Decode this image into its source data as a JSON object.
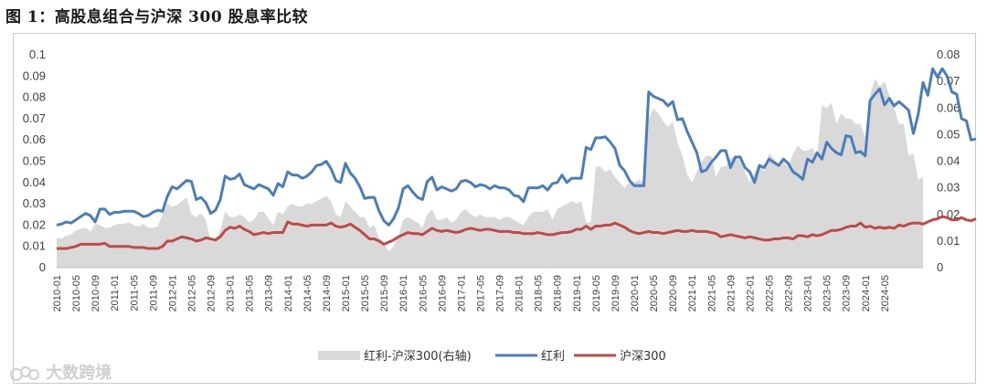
{
  "title": "图 1：高股息组合与沪深 300 股息率比较",
  "watermark": "大数跨境",
  "chart_data": {
    "type": "line",
    "left_axis": {
      "ticks": [
        "0",
        "0.01",
        "0.02",
        "0.03",
        "0.04",
        "0.05",
        "0.06",
        "0.07",
        "0.08",
        "0.09",
        "0.1"
      ],
      "ylim": [
        0,
        0.1
      ]
    },
    "right_axis": {
      "ticks": [
        "0",
        "0.01",
        "0.02",
        "0.03",
        "0.04",
        "0.05",
        "0.06",
        "0.07",
        "0.08"
      ],
      "ylim": [
        0,
        0.08
      ]
    },
    "x_tick_labels": [
      "2010-01",
      "2010-05",
      "2010-09",
      "2011-01",
      "2011-05",
      "2011-09",
      "2012-01",
      "2012-05",
      "2012-09",
      "2013-01",
      "2013-05",
      "2013-09",
      "2014-01",
      "2014-05",
      "2014-09",
      "2015-01",
      "2015-05",
      "2015-09",
      "2016-01",
      "2016-05",
      "2016-09",
      "2017-01",
      "2017-05",
      "2017-09",
      "2018-01",
      "2018-05",
      "2018-09",
      "2019-01",
      "2019-05",
      "2019-09",
      "2020-01",
      "2020-05",
      "2020-09",
      "2021-01",
      "2021-05",
      "2021-09",
      "2022-01",
      "2022-05",
      "2022-09",
      "2023-01",
      "2023-05",
      "2023-09",
      "2024-01",
      "2024-05"
    ],
    "legend_position": "bottom",
    "colors": {
      "area": "#d9d9d9",
      "dividend": "#4a7ebb",
      "hs300": "#be4b48"
    },
    "series": [
      {
        "name": "红利-沪深300(右轴)",
        "type": "area",
        "axis": "right",
        "values": [
          0.011,
          0.011,
          0.012,
          0.0125,
          0.014,
          0.0145,
          0.015,
          0.0135,
          0.0165,
          0.016,
          0.015,
          0.015,
          0.016,
          0.0165,
          0.0165,
          0.017,
          0.016,
          0.0155,
          0.0165,
          0.015,
          0.015,
          0.0155,
          0.02,
          0.024,
          0.023,
          0.0235,
          0.025,
          0.0265,
          0.02,
          0.019,
          0.0205,
          0.018,
          0.01,
          0.011,
          0.014,
          0.021,
          0.019,
          0.019,
          0.02,
          0.019,
          0.017,
          0.018,
          0.021,
          0.021,
          0.0185,
          0.016,
          0.021,
          0.02,
          0.023,
          0.024,
          0.023,
          0.023,
          0.024,
          0.024,
          0.025,
          0.026,
          0.027,
          0.025,
          0.02,
          0.019,
          0.025,
          0.023,
          0.021,
          0.019,
          0.019,
          0.015,
          0.016,
          0.011,
          0.009,
          0.006,
          0.008,
          0.012,
          0.018,
          0.019,
          0.018,
          0.017,
          0.015,
          0.02,
          0.022,
          0.018,
          0.018,
          0.019,
          0.017,
          0.018,
          0.021,
          0.022,
          0.02,
          0.019,
          0.02,
          0.019,
          0.019,
          0.019,
          0.018,
          0.019,
          0.019,
          0.018,
          0.017,
          0.016,
          0.019,
          0.021,
          0.021,
          0.021,
          0.022,
          0.018,
          0.022,
          0.023,
          0.024,
          0.025,
          0.024,
          0.025,
          0.017,
          0.017,
          0.038,
          0.038,
          0.036,
          0.037,
          0.034,
          0.032,
          0.03,
          0.032,
          0.032,
          0.033,
          0.032,
          0.056,
          0.06,
          0.058,
          0.055,
          0.053,
          0.055,
          0.047,
          0.042,
          0.035,
          0.032,
          0.036,
          0.04,
          0.042,
          0.042,
          0.034,
          0.038,
          0.038,
          0.041,
          0.042,
          0.04,
          0.036,
          0.032,
          0.036,
          0.039,
          0.036,
          0.043,
          0.041,
          0.039,
          0.04,
          0.038,
          0.043,
          0.046,
          0.044,
          0.044,
          0.045,
          0.042,
          0.061,
          0.06,
          0.062,
          0.054,
          0.058,
          0.056,
          0.056,
          0.054,
          0.054,
          0.049,
          0.065,
          0.071,
          0.068,
          0.07,
          0.065,
          0.06,
          0.054,
          0.054,
          0.042,
          0.043,
          0.033,
          0.034
        ]
      },
      {
        "name": "红利",
        "type": "line",
        "axis": "left",
        "values": [
          0.02,
          0.0205,
          0.0215,
          0.021,
          0.0225,
          0.024,
          0.0255,
          0.0245,
          0.0215,
          0.0275,
          0.0275,
          0.025,
          0.026,
          0.026,
          0.0265,
          0.0265,
          0.0265,
          0.0255,
          0.024,
          0.0245,
          0.026,
          0.027,
          0.0265,
          0.0335,
          0.038,
          0.037,
          0.039,
          0.041,
          0.0405,
          0.032,
          0.033,
          0.0305,
          0.0255,
          0.027,
          0.032,
          0.043,
          0.0415,
          0.042,
          0.044,
          0.039,
          0.038,
          0.037,
          0.039,
          0.038,
          0.037,
          0.034,
          0.0395,
          0.038,
          0.045,
          0.0435,
          0.0435,
          0.042,
          0.043,
          0.045,
          0.048,
          0.0485,
          0.05,
          0.0465,
          0.041,
          0.04,
          0.049,
          0.0445,
          0.042,
          0.038,
          0.0325,
          0.033,
          0.033,
          0.0265,
          0.022,
          0.02,
          0.023,
          0.028,
          0.037,
          0.0385,
          0.0355,
          0.033,
          0.032,
          0.0405,
          0.0425,
          0.0365,
          0.038,
          0.037,
          0.036,
          0.037,
          0.0405,
          0.041,
          0.04,
          0.038,
          0.039,
          0.0385,
          0.037,
          0.0385,
          0.0375,
          0.0375,
          0.0365,
          0.034,
          0.0335,
          0.031,
          0.0375,
          0.0375,
          0.0375,
          0.0385,
          0.0365,
          0.0395,
          0.04,
          0.0435,
          0.04,
          0.042,
          0.042,
          0.042,
          0.0565,
          0.0555,
          0.061,
          0.061,
          0.0615,
          0.059,
          0.056,
          0.048,
          0.0455,
          0.041,
          0.0385,
          0.0385,
          0.0385,
          0.0825,
          0.0805,
          0.0795,
          0.0785,
          0.076,
          0.078,
          0.0695,
          0.07,
          0.064,
          0.059,
          0.054,
          0.045,
          0.046,
          0.0495,
          0.052,
          0.055,
          0.055,
          0.047,
          0.052,
          0.052,
          0.047,
          0.045,
          0.04,
          0.048,
          0.047,
          0.051,
          0.0495,
          0.048,
          0.051,
          0.049,
          0.045,
          0.0435,
          0.0415,
          0.051,
          0.0495,
          0.054,
          0.051,
          0.059,
          0.056,
          0.054,
          0.053,
          0.062,
          0.0615,
          0.054,
          0.0545,
          0.0525,
          0.0785,
          0.0815,
          0.084,
          0.0765,
          0.0795,
          0.076,
          0.078,
          0.076,
          0.074,
          0.063,
          0.072,
          0.087,
          0.081,
          0.0935,
          0.0895,
          0.0935,
          0.09,
          0.0825,
          0.0815,
          0.07,
          0.069,
          0.06,
          0.0605
        ]
      },
      {
        "name": "沪深300",
        "type": "line",
        "axis": "left",
        "values": [
          0.009,
          0.009,
          0.009,
          0.0095,
          0.01,
          0.011,
          0.011,
          0.011,
          0.011,
          0.011,
          0.0115,
          0.01,
          0.01,
          0.01,
          0.01,
          0.01,
          0.0095,
          0.0095,
          0.0095,
          0.009,
          0.009,
          0.009,
          0.01,
          0.0125,
          0.0125,
          0.0135,
          0.0145,
          0.014,
          0.0135,
          0.0125,
          0.013,
          0.014,
          0.0135,
          0.013,
          0.0145,
          0.0175,
          0.019,
          0.0185,
          0.0195,
          0.018,
          0.017,
          0.0155,
          0.016,
          0.0165,
          0.016,
          0.0165,
          0.0165,
          0.0165,
          0.0215,
          0.0205,
          0.0205,
          0.02,
          0.0195,
          0.02,
          0.02,
          0.02,
          0.02,
          0.021,
          0.0195,
          0.019,
          0.0195,
          0.0205,
          0.019,
          0.0175,
          0.0155,
          0.0135,
          0.0135,
          0.0125,
          0.011,
          0.012,
          0.013,
          0.0145,
          0.0155,
          0.0165,
          0.016,
          0.016,
          0.0155,
          0.017,
          0.0185,
          0.0175,
          0.017,
          0.0175,
          0.017,
          0.0165,
          0.017,
          0.018,
          0.0185,
          0.018,
          0.0175,
          0.018,
          0.018,
          0.0175,
          0.017,
          0.017,
          0.017,
          0.0165,
          0.0165,
          0.016,
          0.016,
          0.016,
          0.0165,
          0.016,
          0.0155,
          0.0155,
          0.016,
          0.0165,
          0.0165,
          0.017,
          0.018,
          0.018,
          0.0195,
          0.018,
          0.0195,
          0.0195,
          0.02,
          0.02,
          0.021,
          0.02,
          0.019,
          0.0175,
          0.0165,
          0.016,
          0.0165,
          0.017,
          0.0165,
          0.0165,
          0.016,
          0.0165,
          0.017,
          0.0175,
          0.017,
          0.017,
          0.0175,
          0.017,
          0.017,
          0.017,
          0.0165,
          0.016,
          0.0145,
          0.015,
          0.0155,
          0.015,
          0.0145,
          0.014,
          0.0145,
          0.014,
          0.0135,
          0.013,
          0.013,
          0.0135,
          0.0135,
          0.014,
          0.014,
          0.0135,
          0.015,
          0.015,
          0.0145,
          0.0155,
          0.015,
          0.0155,
          0.0165,
          0.0175,
          0.0175,
          0.018,
          0.019,
          0.0195,
          0.0195,
          0.021,
          0.019,
          0.0195,
          0.0185,
          0.019,
          0.0185,
          0.019,
          0.0185,
          0.02,
          0.0195,
          0.0205,
          0.021,
          0.021,
          0.0205,
          0.0215,
          0.0225,
          0.023,
          0.024,
          0.0235,
          0.0225,
          0.0225,
          0.0235,
          0.0225,
          0.022,
          0.023
        ]
      }
    ]
  }
}
